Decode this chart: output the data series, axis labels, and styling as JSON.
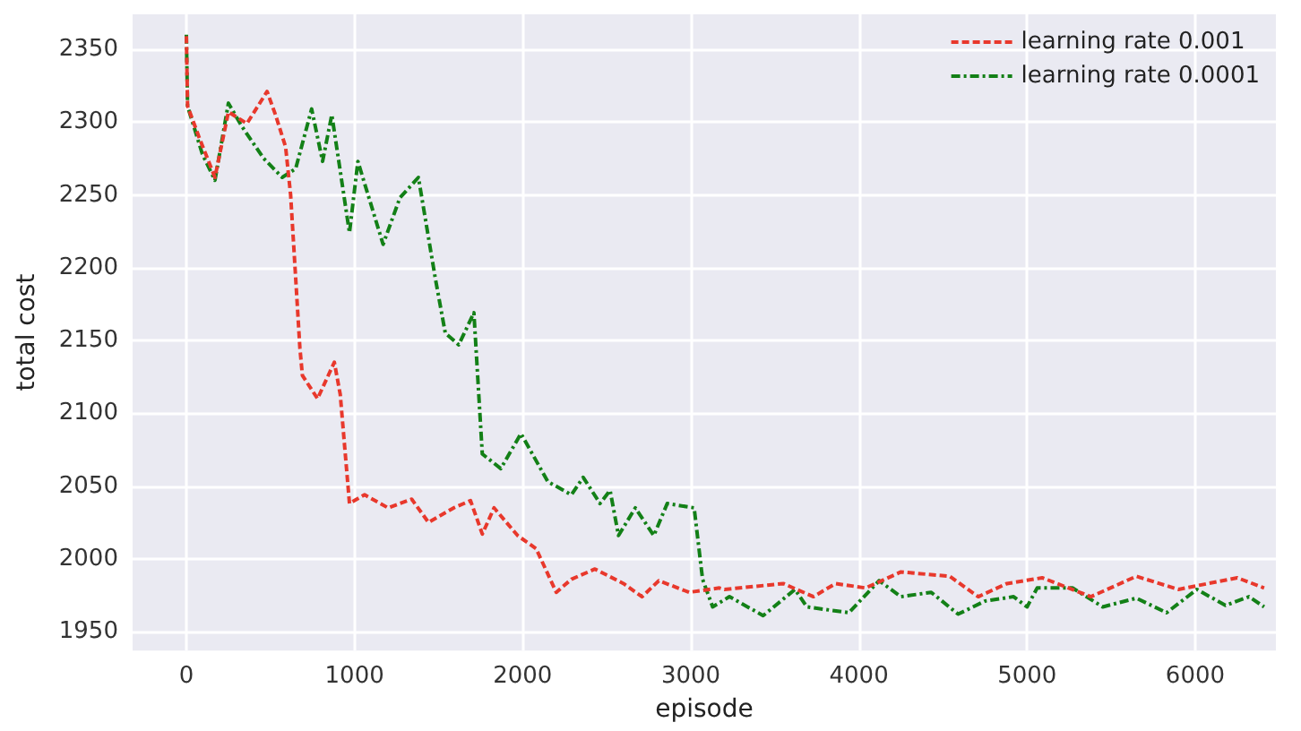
{
  "chart_data": {
    "type": "line",
    "xlabel": "episode",
    "ylabel": "total cost",
    "xlim": [
      -320,
      6480
    ],
    "xticks": [
      0,
      1000,
      2000,
      3000,
      4000,
      5000,
      6000
    ],
    "ylim": [
      1937,
      2374
    ],
    "yticks": [
      1950,
      2000,
      2050,
      2100,
      2150,
      2200,
      2250,
      2300,
      2350
    ],
    "grid": true,
    "legend": "top right",
    "marker": "none",
    "series": [
      {
        "name": "learning rate 0.001",
        "color": "#e8382c",
        "line_style": "dashed",
        "x": [
          0,
          7,
          74,
          170,
          250,
          360,
          480,
          530,
          590,
          620,
          675,
          690,
          780,
          880,
          915,
          970,
          1060,
          1200,
          1340,
          1440,
          1590,
          1690,
          1760,
          1830,
          1970,
          2080,
          2200,
          2290,
          2430,
          2600,
          2710,
          2810,
          2990,
          3170,
          3200,
          3550,
          3730,
          3860,
          4040,
          4250,
          4540,
          4710,
          4880,
          5090,
          5380,
          5650,
          5900,
          6250,
          6410
        ],
        "values": [
          2359,
          2311,
          2290,
          2262,
          2307,
          2299,
          2321,
          2305,
          2283,
          2250,
          2145,
          2126,
          2110,
          2135,
          2113,
          2038,
          2044,
          2035,
          2041,
          2025,
          2035,
          2040,
          2017,
          2035,
          2016,
          2007,
          1977,
          1986,
          1993,
          1983,
          1974,
          1985,
          1977,
          1980,
          1979,
          1983,
          1974,
          1983,
          1980,
          1991,
          1988,
          1974,
          1983,
          1987,
          1974,
          1988,
          1979,
          1987,
          1980
        ]
      },
      {
        "name": "learning rate 0.0001",
        "color": "#138017",
        "line_style": "dashdot",
        "x": [
          0,
          7,
          95,
          170,
          250,
          330,
          460,
          570,
          650,
          745,
          810,
          865,
          970,
          1020,
          1170,
          1270,
          1380,
          1480,
          1540,
          1620,
          1710,
          1760,
          1870,
          1990,
          2150,
          2290,
          2360,
          2460,
          2520,
          2570,
          2670,
          2780,
          2860,
          3020,
          3070,
          3130,
          3230,
          3430,
          3620,
          3690,
          3940,
          4120,
          4250,
          4430,
          4590,
          4750,
          4920,
          5000,
          5060,
          5270,
          5450,
          5650,
          5830,
          6010,
          6180,
          6320,
          6410
        ],
        "values": [
          2360,
          2311,
          2278,
          2260,
          2313,
          2297,
          2275,
          2262,
          2268,
          2309,
          2273,
          2305,
          2224,
          2273,
          2216,
          2248,
          2262,
          2193,
          2155,
          2147,
          2169,
          2072,
          2062,
          2086,
          2053,
          2044,
          2056,
          2038,
          2047,
          2016,
          2035,
          2016,
          2038,
          2035,
          1986,
          1967,
          1974,
          1961,
          1979,
          1967,
          1963,
          1985,
          1974,
          1977,
          1962,
          1971,
          1974,
          1967,
          1980,
          1980,
          1967,
          1973,
          1963,
          1979,
          1968,
          1974,
          1967
        ]
      }
    ]
  }
}
